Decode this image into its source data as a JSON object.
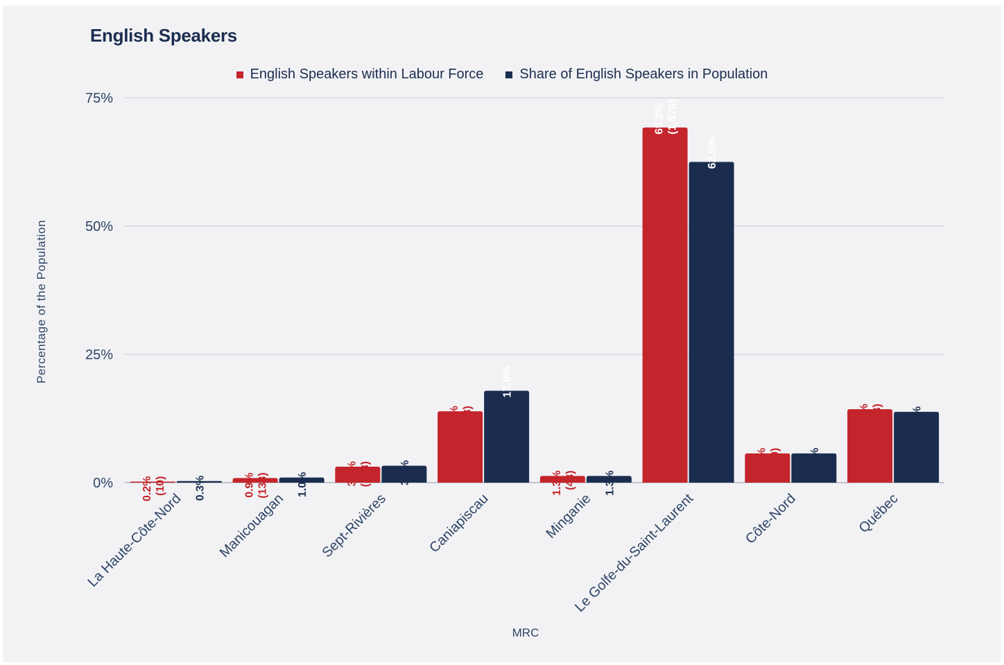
{
  "chart_data": {
    "type": "bar",
    "title": "English Speakers",
    "xlabel": "MRC",
    "ylabel": "Percentage of the Population",
    "ylim": [
      0,
      75
    ],
    "yticks": [
      0,
      25,
      50,
      75
    ],
    "ytick_labels": [
      "0%",
      "25%",
      "50%",
      "75%"
    ],
    "grid": true,
    "legend_position": "top-center",
    "categories": [
      "La Haute-Côte-Nord",
      "Manicouagan",
      "Sept-Rivières",
      "Caniapiscau",
      "Minganie",
      "Le Golfe-du-Saint-Laurent",
      "Côte-Nord",
      "Québec"
    ],
    "series": [
      {
        "name": "English Speakers within Labour Force",
        "color": "#c4242b",
        "values": [
          0.2,
          0.9,
          3.1,
          13.9,
          1.3,
          69.2,
          5.7,
          14.3
        ],
        "labels": [
          "0.2%",
          "0.9%",
          "3.1%",
          "13.9%",
          "1.3%",
          "69.2%",
          "5.7%",
          "14.3%"
        ],
        "counts": [
          "(10)",
          "(138)",
          "(548)",
          "(308)",
          "(43)",
          "(1,578)",
          "(2,620)",
          "(608,053)"
        ]
      },
      {
        "name": "Share of English Speakers in Population",
        "color": "#1b2d4f",
        "values": [
          0.3,
          1.0,
          3.3,
          17.9,
          1.3,
          62.5,
          5.7,
          13.8
        ],
        "labels": [
          "0.3%",
          "1.0%",
          "3.3%",
          "17.9%",
          "1.3%",
          "62.5%",
          "5.7%",
          "13.8%"
        ]
      }
    ]
  }
}
